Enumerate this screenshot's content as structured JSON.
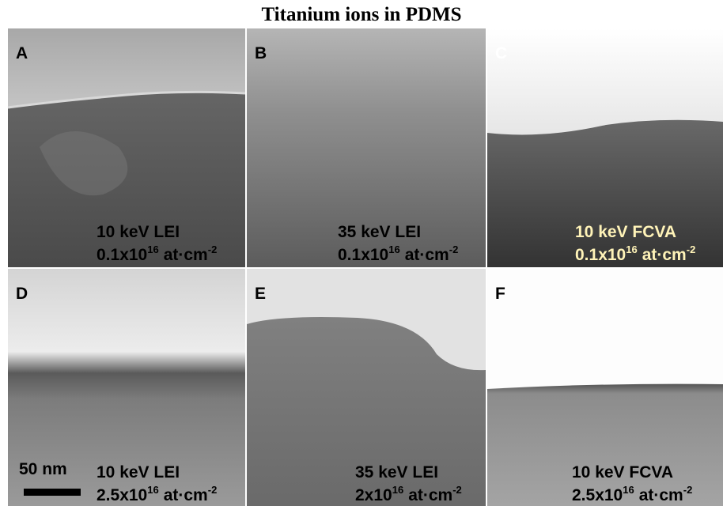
{
  "title": "Titanium ions in PDMS",
  "panels": [
    {
      "letter": "A",
      "line1": "10 keV LEI",
      "dose": "0.1x10",
      "dose_exp": "16",
      "unit": "at·cm",
      "unit_exp": "-2"
    },
    {
      "letter": "B",
      "line1": "35 keV LEI",
      "dose": "0.1x10",
      "dose_exp": "16",
      "unit": "at·cm",
      "unit_exp": "-2"
    },
    {
      "letter": "C",
      "line1": "10 keV FCVA",
      "dose": "0.1x10",
      "dose_exp": "16",
      "unit": "at·cm",
      "unit_exp": "-2"
    },
    {
      "letter": "D",
      "line1": "10 keV LEI",
      "dose": "2.5x10",
      "dose_exp": "16",
      "unit": "at·cm",
      "unit_exp": "-2"
    },
    {
      "letter": "E",
      "line1": "35 keV LEI",
      "dose": "2x10",
      "dose_exp": "16",
      "unit": "at·cm",
      "unit_exp": "-2"
    },
    {
      "letter": "F",
      "line1": "10 keV FCVA",
      "dose": "2.5x10",
      "dose_exp": "16",
      "unit": "at·cm",
      "unit_exp": "-2"
    }
  ],
  "scale_bar": "50 nm"
}
